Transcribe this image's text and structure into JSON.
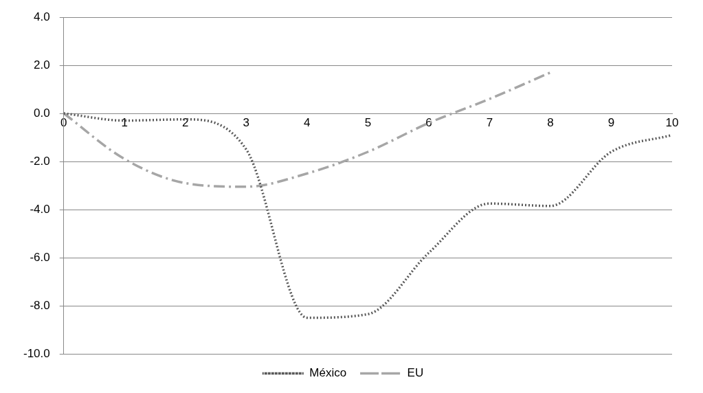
{
  "chart_data": {
    "type": "line",
    "categories": [
      "0",
      "1",
      "2",
      "3",
      "4",
      "5",
      "6",
      "7",
      "8",
      "9",
      "10"
    ],
    "series": [
      {
        "name": "México",
        "color": "#595959",
        "line_style": "dotted",
        "values": [
          0,
          -0.3,
          -0.25,
          -1.5,
          -8.5,
          -8.35,
          -5.8,
          -3.75,
          -3.85,
          -1.6,
          -0.9
        ]
      },
      {
        "name": "EU",
        "color": "#a6a6a6",
        "line_style": "dashdot",
        "values": [
          0,
          -1.9,
          -2.9,
          -3.05,
          -2.5,
          -1.6,
          -0.4,
          0.6,
          1.7,
          null,
          null
        ]
      }
    ],
    "ylim": [
      -10,
      4
    ],
    "yticks": [
      {
        "value": -10,
        "label": "-10.0"
      },
      {
        "value": -8,
        "label": "-8.0"
      },
      {
        "value": -6,
        "label": "-6.0"
      },
      {
        "value": -4,
        "label": "-4.0"
      },
      {
        "value": -2,
        "label": "-2.0"
      },
      {
        "value": 0,
        "label": "0.0"
      },
      {
        "value": 2,
        "label": "2.0"
      },
      {
        "value": 4,
        "label": "4.0"
      }
    ],
    "grid": "y",
    "legend": "bottom",
    "marker": "none"
  }
}
